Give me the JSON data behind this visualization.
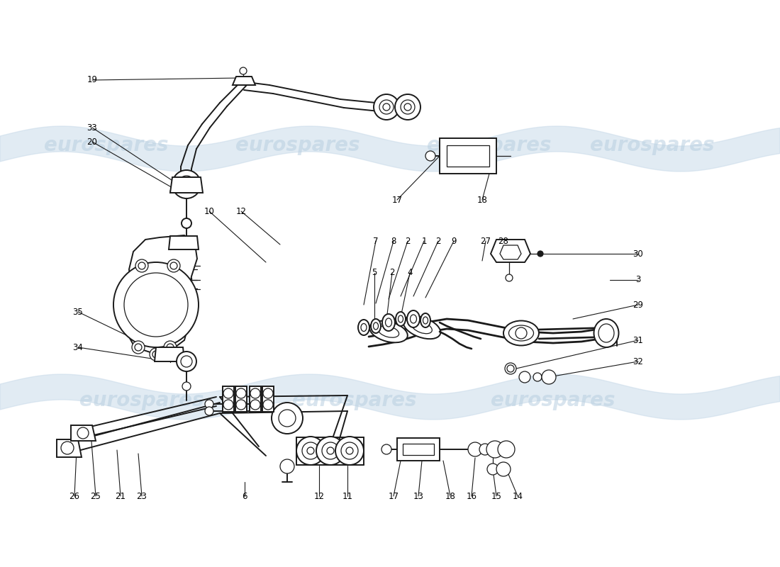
{
  "background_color": "#ffffff",
  "watermark_text": "eurospares",
  "watermark_color": "#b8cfe0",
  "line_color": "#1a1a1a",
  "label_color": "#000000",
  "fig_width": 11.0,
  "fig_height": 8.0,
  "dpi": 100,
  "stripe_color": "#c5d8e8",
  "stripe_alpha": 0.5,
  "wm_fontsize": 20,
  "wm_alpha": 0.55,
  "label_fontsize": 8.5,
  "lw_main": 1.4,
  "lw_thin": 0.9,
  "lw_leader": 0.8
}
